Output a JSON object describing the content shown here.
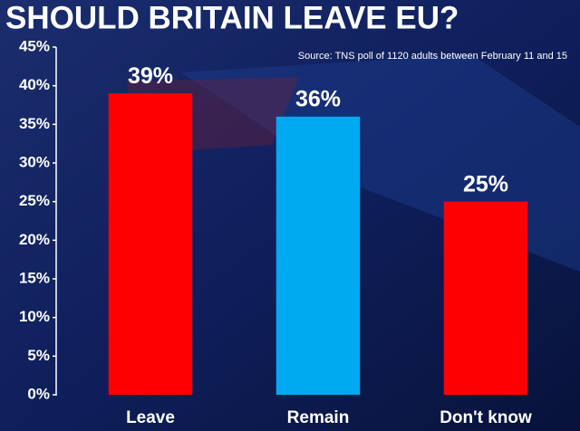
{
  "chart_data": {
    "type": "bar",
    "title": "SHOULD BRITAIN LEAVE EU?",
    "source": "Source: TNS poll of 1120 adults between February 11 and 15",
    "categories": [
      "Leave",
      "Remain",
      "Don't know"
    ],
    "values": [
      39,
      36,
      25
    ],
    "value_labels": [
      "39%",
      "36%",
      "25%"
    ],
    "colors": [
      "#ff0000",
      "#00aaf0",
      "#ff0000"
    ],
    "ylim": [
      0,
      45
    ],
    "yticks": [
      {
        "value": 0,
        "label": "0%"
      },
      {
        "value": 5,
        "label": "5%"
      },
      {
        "value": 10,
        "label": "10%"
      },
      {
        "value": 15,
        "label": "15%"
      },
      {
        "value": 20,
        "label": "20%"
      },
      {
        "value": 25,
        "label": "25%"
      },
      {
        "value": 30,
        "label": "30%"
      },
      {
        "value": 35,
        "label": "35%"
      },
      {
        "value": 40,
        "label": "40%"
      },
      {
        "value": 45,
        "label": "45%"
      }
    ],
    "grid": false
  }
}
